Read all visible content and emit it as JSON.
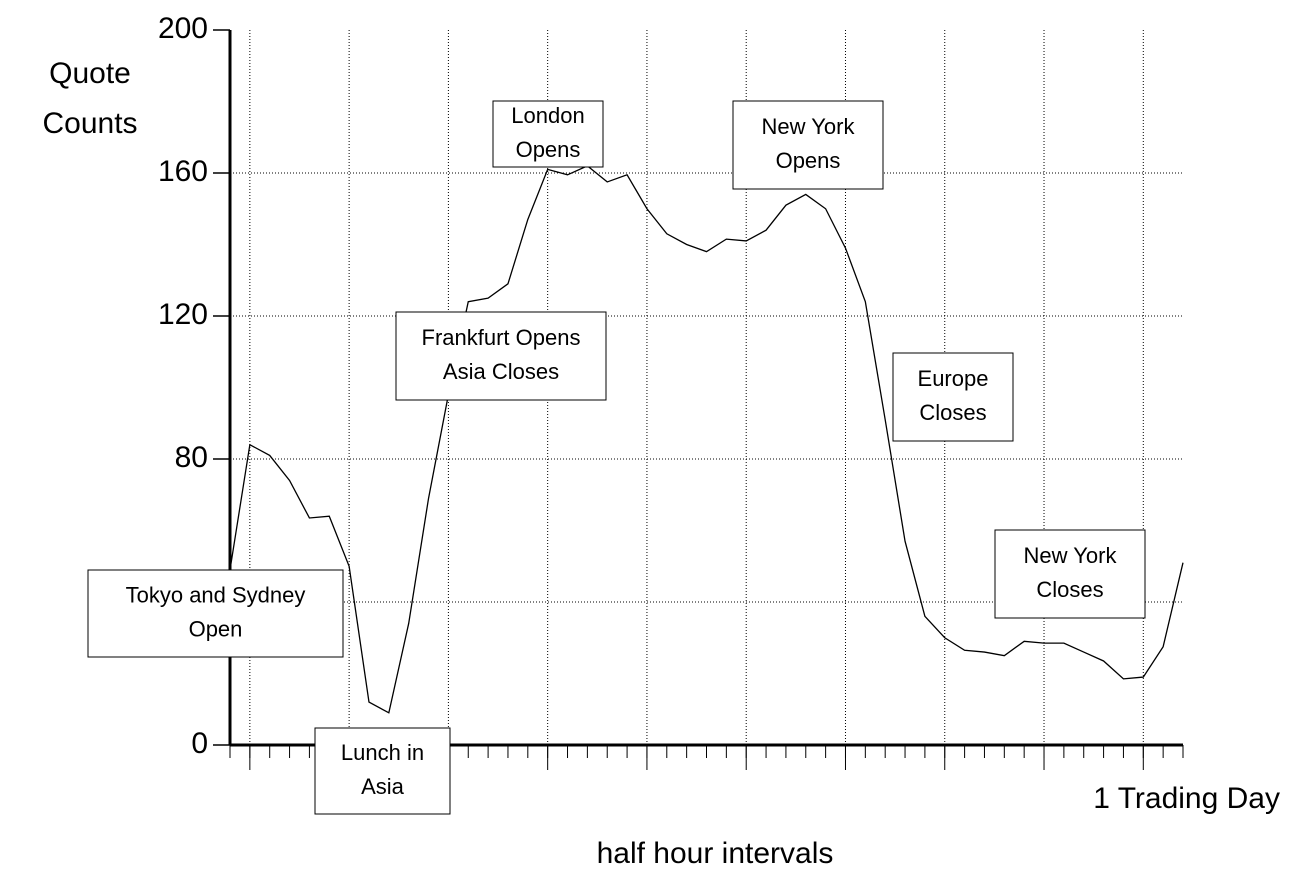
{
  "chart_data": {
    "type": "line",
    "y_label": [
      "Quote",
      "Counts"
    ],
    "x_label": "half hour intervals",
    "x_label_right": "1 Trading Day",
    "x": [
      0,
      1,
      2,
      3,
      4,
      5,
      6,
      7,
      8,
      9,
      10,
      11,
      12,
      13,
      14,
      15,
      16,
      17,
      18,
      19,
      20,
      21,
      22,
      23,
      24,
      25,
      26,
      27,
      28,
      29,
      30,
      31,
      32,
      33,
      34,
      35,
      36,
      37,
      38,
      39,
      40,
      41,
      42,
      43,
      44,
      45,
      46,
      47,
      48
    ],
    "series": [
      {
        "color": "#000000",
        "values": [
          49,
          84,
          81,
          74,
          63.5,
          64,
          50,
          12,
          9,
          34,
          69,
          98,
          124,
          125,
          129,
          147,
          161,
          159.5,
          162,
          157.5,
          159.5,
          150,
          143,
          140,
          138,
          141.5,
          141,
          144,
          151,
          154,
          150,
          139,
          124,
          91,
          57,
          36,
          30,
          26.5,
          26,
          25,
          29,
          28.5,
          28.5,
          26,
          23.5,
          18.5,
          19,
          27.5,
          51
        ]
      }
    ],
    "xlim": [
      0,
      48
    ],
    "ylim": [
      0,
      200
    ],
    "xticks": [
      1,
      6,
      11,
      16,
      21,
      26,
      31,
      36,
      41,
      46
    ],
    "yticks": [
      0,
      40,
      80,
      120,
      160,
      200
    ],
    "minor_xticks": true,
    "grid": true,
    "annotations": [
      [
        "Tokyo and Sydney",
        "Open"
      ],
      [
        "Lunch in",
        "Asia"
      ],
      [
        "Frankfurt Opens",
        "Asia Closes"
      ],
      [
        "London",
        "Opens"
      ],
      [
        "New York",
        "Opens"
      ],
      [
        "Europe",
        "Closes"
      ],
      [
        "New York",
        "Closes"
      ]
    ]
  }
}
